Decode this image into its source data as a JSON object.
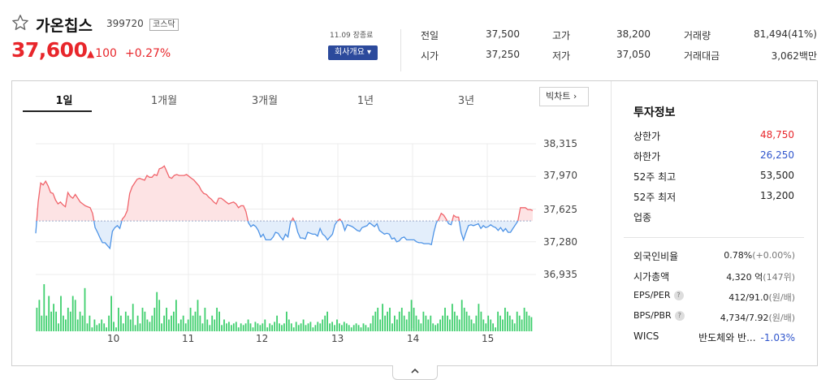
{
  "stock": {
    "name": "가온칩스",
    "code": "399720",
    "market": "코스닥",
    "price": "37,600",
    "change_arrow": "▲",
    "change": "100",
    "change_rate": "+0.27%",
    "market_time": "11.09 장종료",
    "company_button": "회사개요 ▾"
  },
  "summary": {
    "prev_close": {
      "label": "전일",
      "value": "37,500"
    },
    "open": {
      "label": "시가",
      "value": "37,250"
    },
    "high": {
      "label": "고가",
      "value": "38,200"
    },
    "low": {
      "label": "저가",
      "value": "37,050"
    },
    "volume": {
      "label": "거래량",
      "value": "81,494(41%)"
    },
    "amount": {
      "label": "거래대금",
      "value": "3,062백만"
    }
  },
  "tabs": [
    "1일",
    "1개월",
    "3개월",
    "1년",
    "3년"
  ],
  "active_tab": "1일",
  "big_chart_button": "빅차트 ›",
  "chart_data": {
    "type": "area",
    "y_ticks": [
      "38,315",
      "37,970",
      "37,625",
      "37,280",
      "36,935"
    ],
    "ylim": [
      36935,
      38315
    ],
    "x_ticks": [
      "10",
      "11",
      "12",
      "13",
      "14",
      "15"
    ],
    "baseline": 37500,
    "colors": {
      "up": "#f0646b",
      "up_fill": "#fde3e4",
      "down": "#4d93e6",
      "down_fill": "#e3eefb",
      "volume": "#3fcf6e"
    },
    "price_series": [
      37370,
      37700,
      37900,
      37880,
      37920,
      37870,
      37800,
      37790,
      37720,
      37680,
      37700,
      37670,
      37650,
      37800,
      37760,
      37740,
      37780,
      37740,
      37700,
      37680,
      37660,
      37650,
      37640,
      37580,
      37430,
      37380,
      37320,
      37270,
      37270,
      37240,
      37210,
      37390,
      37430,
      37450,
      37420,
      37520,
      37550,
      37610,
      37790,
      37860,
      37900,
      37940,
      37950,
      37940,
      37930,
      37980,
      37960,
      37960,
      37990,
      37980,
      38050,
      38060,
      38080,
      38020,
      37960,
      37950,
      37980,
      37990,
      37980,
      37980,
      37980,
      37990,
      37970,
      37950,
      37930,
      37900,
      37870,
      37820,
      37790,
      37780,
      37750,
      37730,
      37700,
      37680,
      37740,
      37740,
      37720,
      37700,
      37680,
      37690,
      37700,
      37680,
      37640,
      37660,
      37660,
      37600,
      37480,
      37440,
      37460,
      37440,
      37400,
      37330,
      37360,
      37300,
      37300,
      37300,
      37330,
      37380,
      37370,
      37330,
      37300,
      37360,
      37330,
      37480,
      37530,
      37480,
      37380,
      37320,
      37320,
      37310,
      37380,
      37370,
      37360,
      37360,
      37340,
      37420,
      37360,
      37340,
      37300,
      37330,
      37360,
      37460,
      37500,
      37520,
      37480,
      37400,
      37460,
      37450,
      37440,
      37420,
      37400,
      37390,
      37430,
      37440,
      37450,
      37480,
      37460,
      37440,
      37470,
      37400,
      37380,
      37360,
      37370,
      37360,
      37310,
      37320,
      37280,
      37290,
      37320,
      37330,
      37300,
      37300,
      37300,
      37300,
      37280,
      37270,
      37270,
      37260,
      37260,
      37260,
      37250,
      37380,
      37480,
      37520,
      37580,
      37560,
      37520,
      37470,
      37460,
      37560,
      37540,
      37540,
      37380,
      37300,
      37380,
      37450,
      37460,
      37450,
      37460,
      37470,
      37420,
      37450,
      37430,
      37440,
      37460,
      37440,
      37430,
      37400,
      37430,
      37390,
      37420,
      37380,
      37380,
      37420,
      37460,
      37500,
      37640,
      37640,
      37640,
      37620,
      37620,
      37610
    ],
    "volume": [
      30,
      40,
      20,
      60,
      20,
      45,
      25,
      35,
      25,
      10,
      45,
      20,
      15,
      30,
      25,
      45,
      40,
      15,
      25,
      20,
      55,
      10,
      20,
      5,
      15,
      8,
      10,
      15,
      10,
      5,
      20,
      45,
      12,
      5,
      30,
      20,
      10,
      25,
      20,
      15,
      35,
      8,
      20,
      10,
      30,
      25,
      15,
      12,
      20,
      30,
      50,
      40,
      10,
      20,
      30,
      15,
      20,
      25,
      40,
      10,
      15,
      20,
      10,
      15,
      30,
      20,
      25,
      40,
      20,
      10,
      30,
      15,
      8,
      20,
      15,
      30,
      25,
      8,
      15,
      10,
      12,
      8,
      10,
      12,
      5,
      10,
      8,
      10,
      15,
      10,
      5,
      12,
      10,
      8,
      10,
      15,
      5,
      10,
      8,
      12,
      20,
      10,
      8,
      10,
      25,
      15,
      10,
      5,
      12,
      8,
      10,
      15,
      8,
      10,
      12,
      5,
      8,
      12,
      10,
      15,
      20,
      25,
      10,
      12,
      8,
      15,
      10,
      8,
      12,
      10,
      8,
      5,
      8,
      10,
      8,
      5,
      10,
      8,
      5,
      10,
      20,
      25,
      30,
      15,
      35,
      20,
      25,
      30,
      10,
      20,
      15,
      25,
      30,
      20,
      15,
      25,
      40,
      30,
      20,
      15,
      10,
      25,
      20,
      15,
      20,
      10,
      8,
      10,
      15,
      20,
      30,
      20,
      15,
      35,
      25,
      20,
      15,
      40,
      30,
      25,
      20,
      15,
      10,
      20,
      35,
      25,
      15,
      10,
      20,
      15,
      10,
      5,
      25,
      20,
      15,
      30,
      25,
      20,
      15,
      10,
      25,
      20,
      15,
      30,
      25,
      20,
      18
    ]
  },
  "info": {
    "title": "투자정보",
    "upper_limit": {
      "label": "상한가",
      "value": "48,750"
    },
    "lower_limit": {
      "label": "하한가",
      "value": "26,250"
    },
    "high_52w": {
      "label": "52주 최고",
      "value": "53,500"
    },
    "low_52w": {
      "label": "52주 최저",
      "value": "13,200"
    },
    "sector": {
      "label": "업종",
      "value": ""
    },
    "foreign_ratio": {
      "label": "외국인비율",
      "value": "0.78%",
      "extra": "(+0.00%)"
    },
    "market_cap": {
      "label": "시가총액",
      "value": "4,320 억",
      "extra": "(147위)"
    },
    "eps_per": {
      "label": "EPS/PER",
      "value": "412/91.0",
      "extra": "(원/배)"
    },
    "bps_pbr": {
      "label": "BPS/PBR",
      "value": "4,734/7.92",
      "extra": "(원/배)"
    },
    "wics": {
      "label": "WICS",
      "value": "반도체와 반...",
      "extra": "-1.03%"
    }
  },
  "collapse_icon": "chevron-up-icon"
}
